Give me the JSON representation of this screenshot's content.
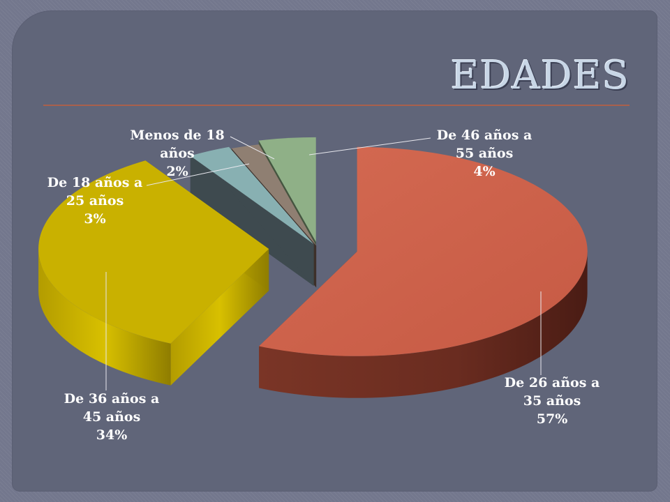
{
  "slide": {
    "title": "EDADES"
  },
  "chart_data": {
    "type": "pie",
    "title": "EDADES",
    "slices": [
      {
        "name": "De 26 años a 35 años",
        "line1": "De 26 años a",
        "line2": "35 años",
        "value": 57,
        "pct": "57%",
        "color": "#cf5f49"
      },
      {
        "name": "De 36 años a 45 años",
        "line1": "De 36 años a",
        "line2": "45 años",
        "value": 34,
        "pct": "34%",
        "color": "#c9b100"
      },
      {
        "name": "De 18 años a 25 años",
        "line1": "De 18 años a",
        "line2": "25 años",
        "value": 3,
        "pct": "3%",
        "color": "#88b0b2"
      },
      {
        "name": "Menos de 18 años",
        "line1": "Menos de 18",
        "line2": "años",
        "value": 2,
        "pct": "2%",
        "color": "#8f7f72"
      },
      {
        "name": "De 46 años a 55 años",
        "line1": "De 46 años a",
        "line2": "55 años",
        "value": 4,
        "pct": "4%",
        "color": "#8fb087"
      }
    ]
  }
}
